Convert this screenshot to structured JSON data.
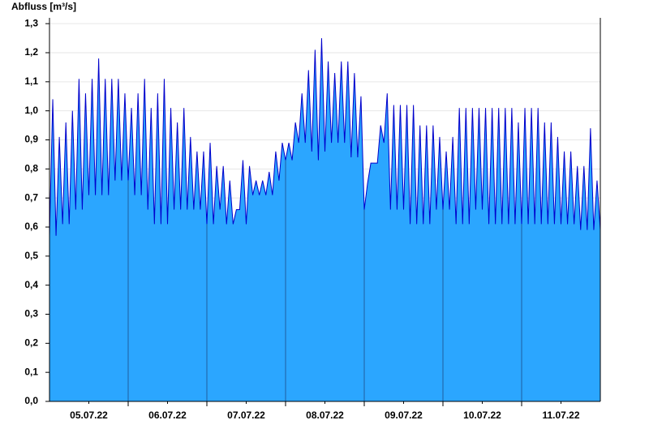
{
  "chart_data": {
    "type": "area",
    "ylabel": "Abfluss [m³/s]",
    "x": [
      0,
      1,
      2,
      3,
      4,
      5,
      6,
      7,
      8,
      9,
      10,
      11,
      12,
      13,
      14,
      15,
      16,
      17,
      18,
      19,
      20,
      21,
      22,
      23,
      24,
      25,
      26,
      27,
      28,
      29,
      30,
      31,
      32,
      33,
      34,
      35,
      36,
      37,
      38,
      39,
      40,
      41,
      42,
      43,
      44,
      45,
      46,
      47,
      48,
      49,
      50,
      51,
      52,
      53,
      54,
      55,
      56,
      57,
      58,
      59,
      60,
      61,
      62,
      63,
      64,
      65,
      66,
      67,
      68,
      69,
      70,
      71,
      72,
      73,
      74,
      75,
      76,
      77,
      78,
      79,
      80,
      81,
      82,
      83,
      84,
      85,
      86,
      87,
      88,
      89,
      90,
      91,
      92,
      93,
      94,
      95,
      96,
      97,
      98,
      99,
      100,
      101,
      102,
      103,
      104,
      105,
      106,
      107,
      108,
      109,
      110,
      111,
      112,
      113,
      114,
      115,
      116,
      117,
      118,
      119,
      120,
      121,
      122,
      123,
      124,
      125,
      126,
      127,
      128,
      129,
      130,
      131,
      132,
      133,
      134,
      135,
      136,
      137,
      138,
      139,
      140,
      141,
      142,
      143,
      144,
      145,
      146,
      147,
      148,
      149,
      150,
      151,
      152,
      153,
      154,
      155,
      156,
      157,
      158,
      159,
      160,
      161,
      162,
      163,
      164,
      165,
      166,
      167,
      168
    ],
    "series": [
      {
        "color": "#2ba6ff",
        "line_color": "#0000cc",
        "values": [
          0.57,
          1.04,
          0.57,
          0.91,
          0.61,
          0.96,
          0.61,
          1.0,
          0.66,
          1.11,
          0.66,
          1.06,
          0.71,
          1.11,
          0.71,
          1.18,
          0.71,
          1.11,
          0.71,
          1.11,
          0.76,
          1.11,
          0.76,
          1.06,
          0.76,
          1.01,
          0.71,
          1.06,
          0.71,
          1.11,
          0.66,
          1.01,
          0.61,
          1.06,
          0.61,
          1.11,
          0.61,
          1.01,
          0.66,
          0.96,
          0.66,
          1.01,
          0.66,
          0.91,
          0.66,
          0.86,
          0.66,
          0.86,
          0.61,
          0.89,
          0.61,
          0.81,
          0.66,
          0.81,
          0.61,
          0.76,
          0.61,
          0.66,
          0.66,
          0.83,
          0.61,
          0.81,
          0.71,
          0.76,
          0.71,
          0.76,
          0.71,
          0.79,
          0.71,
          0.86,
          0.76,
          0.89,
          0.83,
          0.89,
          0.83,
          0.96,
          0.89,
          1.06,
          0.89,
          1.14,
          0.86,
          1.21,
          0.83,
          1.25,
          0.86,
          1.17,
          0.89,
          1.13,
          0.89,
          1.17,
          0.89,
          1.17,
          0.84,
          1.13,
          0.84,
          1.05,
          0.66,
          0.75,
          0.82,
          0.82,
          0.82,
          0.95,
          0.89,
          1.06,
          0.66,
          1.02,
          0.66,
          1.02,
          0.66,
          1.02,
          0.61,
          1.02,
          0.61,
          0.95,
          0.61,
          0.95,
          0.61,
          0.95,
          0.66,
          0.91,
          0.66,
          0.86,
          0.66,
          0.91,
          0.61,
          1.01,
          0.61,
          1.01,
          0.61,
          1.01,
          0.66,
          1.01,
          0.66,
          1.01,
          0.61,
          1.01,
          0.61,
          1.01,
          0.61,
          1.01,
          0.61,
          1.01,
          0.61,
          0.96,
          0.61,
          1.01,
          0.61,
          1.01,
          0.61,
          1.01,
          0.61,
          0.96,
          0.61,
          0.96,
          0.61,
          0.91,
          0.61,
          0.86,
          0.61,
          0.86,
          0.61,
          0.81,
          0.59,
          0.81,
          0.59,
          0.94,
          0.59,
          0.76,
          0.59
        ]
      }
    ],
    "xlim": [
      0,
      168
    ],
    "xticks": [
      {
        "value": 12,
        "label": "05.07.22"
      },
      {
        "value": 36,
        "label": "06.07.22"
      },
      {
        "value": 60,
        "label": "07.07.22"
      },
      {
        "value": 84,
        "label": "08.07.22"
      },
      {
        "value": 108,
        "label": "09.07.22"
      },
      {
        "value": 132,
        "label": "10.07.22"
      },
      {
        "value": 156,
        "label": "11.07.22"
      }
    ],
    "xgrid": [
      24,
      48,
      72,
      96,
      120,
      144
    ],
    "ylim": [
      0,
      1.32
    ],
    "yticks": [
      {
        "value": 0,
        "label": "0,0"
      },
      {
        "value": 0.1,
        "label": "0,1"
      },
      {
        "value": 0.2,
        "label": "0,2"
      },
      {
        "value": 0.3,
        "label": "0,3"
      },
      {
        "value": 0.4,
        "label": "0,4"
      },
      {
        "value": 0.5,
        "label": "0,5"
      },
      {
        "value": 0.6,
        "label": "0,6"
      },
      {
        "value": 0.7,
        "label": "0,7"
      },
      {
        "value": 0.8,
        "label": "0,8"
      },
      {
        "value": 0.9,
        "label": "0,9"
      },
      {
        "value": 1.0,
        "label": "1,0"
      },
      {
        "value": 1.1,
        "label": "1,1"
      },
      {
        "value": 1.2,
        "label": "1,2"
      },
      {
        "value": 1.3,
        "label": "1,3"
      }
    ],
    "grid": true
  }
}
